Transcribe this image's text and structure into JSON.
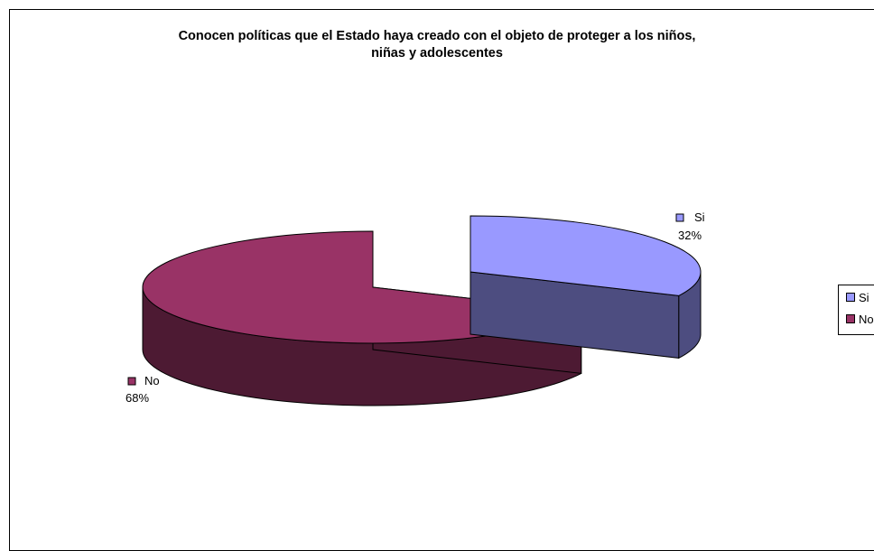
{
  "chart_data": {
    "type": "pie",
    "title_line1": "Conocen políticas que el Estado haya creado con el objeto de proteger a los niños,",
    "title_line2": "niñas y adolescentes",
    "legend_position": "right",
    "slices": [
      {
        "label": "Si",
        "percent": 32,
        "percent_label": "32%",
        "color": "#9999FF",
        "side_color": "#4D4D80"
      },
      {
        "label": "No",
        "percent": 68,
        "percent_label": "68%",
        "color": "#993366",
        "side_color": "#4D1A33"
      }
    ]
  }
}
